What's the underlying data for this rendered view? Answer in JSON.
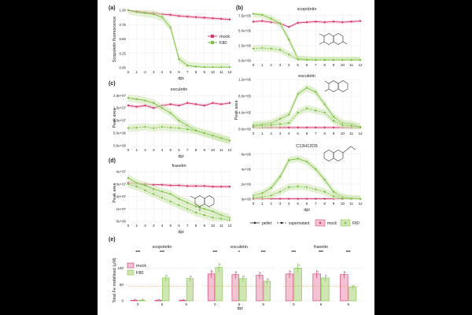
{
  "figure": {
    "colors": {
      "mock": "#d6336c",
      "f80": "#7cc242",
      "f80_band": "#cfe6b2",
      "mock_band": "#f4c2d2",
      "grid": "#ececec",
      "sig": "#222222"
    },
    "panel_letters": [
      "(a)",
      "(b)",
      "(c)",
      "(d)",
      "(e)"
    ],
    "ylabels": {
      "a": "Scopoletin fluorescence",
      "c": "Peak area",
      "d": "Peak area",
      "b": "Peak area",
      "e": "Total Fe mobilised (µM)"
    },
    "xlabels": {
      "dpi": "dpi"
    },
    "legend_a": {
      "mock": "mock",
      "f80": "F80"
    },
    "legend_b": {
      "pellet": "pellet",
      "supernatant": "supernatant",
      "mock": "mock",
      "f80": "F80"
    },
    "legend_e": {
      "mock": "mock",
      "f80": "F80"
    }
  },
  "chart_data": [
    {
      "id": "a",
      "type": "line",
      "x": [
        0,
        1,
        2,
        3,
        4,
        5,
        6,
        7,
        8,
        9,
        10,
        11,
        12
      ],
      "ylim": [
        0,
        1
      ],
      "yticks": [
        0,
        0.25,
        0.5,
        0.75,
        1
      ],
      "ytick_labels": [
        "0.00",
        "0.25",
        "0.50",
        "0.75",
        "1.00"
      ],
      "series": [
        {
          "name": "mock",
          "values": [
            1.0,
            0.98,
            0.96,
            0.95,
            0.93,
            0.92,
            0.9,
            0.89,
            0.88,
            0.87,
            0.86,
            0.85,
            0.84
          ]
        },
        {
          "name": "F80",
          "values": [
            1.0,
            0.97,
            0.95,
            0.93,
            0.88,
            0.7,
            0.15,
            0.04,
            0.02,
            0.01,
            0.01,
            0.01,
            0.01
          ]
        }
      ]
    },
    {
      "id": "c",
      "type": "line",
      "title": "esculetin",
      "x": [
        0,
        1,
        2,
        3,
        4,
        5,
        6,
        7,
        8,
        9,
        10,
        11,
        12
      ],
      "ylim": [
        0,
        21000000.0
      ],
      "yticks": [
        0,
        5000000.0,
        10000000.0,
        15000000.0,
        20000000.0
      ],
      "ytick_labels": [
        "0.0e+00",
        "5.0e+06",
        "1.0e+07",
        "1.5e+07",
        "2.0e+07"
      ],
      "series": [
        {
          "name": "mock pellet",
          "values": [
            16000000.0,
            15500000.0,
            16000000.0,
            15000000.0,
            16000000.0,
            16500000.0,
            16000000.0,
            17000000.0,
            16500000.0,
            16000000.0,
            17000000.0,
            16500000.0,
            17000000.0
          ]
        },
        {
          "name": "F80 pellet",
          "values": [
            19000000.0,
            18500000.0,
            18000000.0,
            17000000.0,
            15000000.0,
            13000000.0,
            10000000.0,
            8000000.0,
            6000000.0,
            5000000.0,
            4000000.0,
            3000000.0,
            2000000.0
          ]
        },
        {
          "name": "F80 supernatant",
          "values": [
            7000000.0,
            7200000.0,
            7500000.0,
            7000000.0,
            7500000.0,
            7200000.0,
            7000000.0,
            6500000.0,
            6000000.0,
            5000000.0,
            4000000.0,
            3000000.0,
            2000000.0
          ]
        }
      ]
    },
    {
      "id": "d",
      "type": "line",
      "title": "fraxetin",
      "x": [
        0,
        1,
        2,
        3,
        4,
        5,
        6,
        7,
        8,
        9,
        10,
        11,
        12
      ],
      "ylim": [
        0,
        42000000.0
      ],
      "yticks": [
        0,
        10000000.0,
        20000000.0,
        30000000.0,
        40000000.0
      ],
      "ytick_labels": [
        "0e+00",
        "1e+07",
        "2e+07",
        "3e+07",
        "4e+07"
      ],
      "series": [
        {
          "name": "mock pellet",
          "values": [
            31000000.0,
            30500000.0,
            30000000.0,
            29500000.0,
            29500000.0,
            29000000.0,
            29000000.0,
            28500000.0,
            28500000.0,
            28500000.0,
            28000000.0,
            28000000.0,
            28000000.0
          ]
        },
        {
          "name": "F80 pellet",
          "values": [
            35000000.0,
            31000000.0,
            29000000.0,
            26000000.0,
            24000000.0,
            22000000.0,
            18000000.0,
            15000000.0,
            12000000.0,
            10000000.0,
            8000000.0,
            5000000.0,
            3000000.0
          ]
        },
        {
          "name": "F80 supernatant",
          "values": [
            30000000.0,
            28000000.0,
            25000000.0,
            22000000.0,
            19000000.0,
            16000000.0,
            13000000.0,
            10000000.0,
            7000000.0,
            5000000.0,
            3000000.0,
            2000000.0,
            1000000.0
          ]
        }
      ]
    },
    {
      "id": "b1",
      "type": "line",
      "title": "scopoletin",
      "x": [
        0,
        1,
        2,
        3,
        4,
        5,
        6,
        7,
        8,
        9,
        10,
        11,
        12
      ],
      "ylim": [
        0,
        8000000.0
      ],
      "yticks": [
        0,
        2500000.0,
        5000000.0,
        7500000.0
      ],
      "ytick_labels": [
        "0.0e+00",
        "2.5e+06",
        "5.0e+06",
        "7.5e+06"
      ],
      "series": [
        {
          "name": "mock pellet",
          "values": [
            6500000.0,
            6600000.0,
            6400000.0,
            6200000.0,
            5600000.0,
            6300000.0,
            6400000.0,
            6500000.0,
            6400000.0,
            6500000.0,
            6400000.0,
            6500000.0,
            6600000.0
          ]
        },
        {
          "name": "F80 pellet",
          "values": [
            7800000.0,
            7600000.0,
            7000000.0,
            6200000.0,
            3500000.0,
            300000.0,
            200000.0,
            100000.0,
            100000.0,
            100000.0,
            100000.0,
            100000.0,
            100000.0
          ]
        },
        {
          "name": "F80 supernatant",
          "values": [
            2000000.0,
            2100000.0,
            2000000.0,
            1800000.0,
            1000000.0,
            200000.0,
            100000.0,
            100000.0,
            100000.0,
            100000.0,
            100000.0,
            100000.0,
            100000.0
          ]
        }
      ]
    },
    {
      "id": "b2",
      "type": "line",
      "title": "esculetin",
      "x": [
        0,
        1,
        2,
        3,
        4,
        5,
        6,
        7,
        8,
        9,
        10,
        11,
        12
      ],
      "ylim": [
        0,
        1200000.0
      ],
      "yticks": [
        0,
        400000.0,
        800000.0,
        1200000.0
      ],
      "ytick_labels": [
        "0.0e+00",
        "4.0e+05",
        "8.0e+05",
        "1.2e+06"
      ],
      "series": [
        {
          "name": "mock pellet",
          "values": [
            50000.0,
            40000.0,
            40000.0,
            40000.0,
            40000.0,
            40000.0,
            40000.0,
            40000.0,
            40000.0,
            40000.0,
            40000.0,
            40000.0,
            40000.0
          ]
        },
        {
          "name": "F80 pellet",
          "values": [
            100000.0,
            120000.0,
            150000.0,
            250000.0,
            350000.0,
            850000.0,
            1000000.0,
            900000.0,
            600000.0,
            300000.0,
            150000.0,
            120000.0,
            50000.0
          ]
        },
        {
          "name": "F80 supernatant",
          "values": [
            80000.0,
            90000.0,
            100000.0,
            120000.0,
            150000.0,
            400000.0,
            500000.0,
            450000.0,
            400000.0,
            200000.0,
            100000.0,
            80000.0,
            50000.0
          ]
        }
      ]
    },
    {
      "id": "b3",
      "type": "line",
      "title": "C13H12O5",
      "x": [
        0,
        1,
        2,
        3,
        4,
        5,
        6,
        7,
        8,
        9,
        10,
        11,
        12
      ],
      "ylim": [
        0,
        6600000.0
      ],
      "yticks": [
        0,
        2000000.0,
        4000000.0,
        6000000.0
      ],
      "ytick_labels": [
        "0e+00",
        "2e+06",
        "4e+06",
        "6e+06"
      ],
      "series": [
        {
          "name": "mock pellet",
          "values": [
            50000.0,
            50000.0,
            50000.0,
            50000.0,
            50000.0,
            50000.0,
            50000.0,
            50000.0,
            50000.0,
            50000.0,
            50000.0,
            50000.0,
            50000.0
          ]
        },
        {
          "name": "F80 pellet",
          "values": [
            500000.0,
            800000.0,
            1500000.0,
            3000000.0,
            5200000.0,
            5400000.0,
            5000000.0,
            4000000.0,
            2600000.0,
            1000000.0,
            300000.0,
            100000.0,
            50000.0
          ]
        },
        {
          "name": "F80 supernatant",
          "values": [
            200000.0,
            300000.0,
            500000.0,
            1000000.0,
            1600000.0,
            1700000.0,
            1600000.0,
            1300000.0,
            1000000.0,
            400000.0,
            100000.0,
            50000.0,
            30000.0
          ]
        }
      ]
    },
    {
      "id": "e",
      "type": "bar",
      "ylim": [
        0,
        125
      ],
      "yticks": [
        0,
        50,
        100
      ],
      "ytick_labels": [
        "0",
        "50",
        "100"
      ],
      "groups": [
        {
          "title": "scopoletin",
          "categories": [
            "0",
            "6",
            "9"
          ],
          "mock": [
            2,
            2,
            2
          ],
          "f80": [
            2,
            70,
            68
          ],
          "sig": [
            "***",
            "***",
            ""
          ]
        },
        {
          "title": "esculetin",
          "categories": [
            "0",
            "6",
            "9"
          ],
          "mock": [
            82,
            80,
            78
          ],
          "f80": [
            102,
            68,
            60
          ],
          "sig": [
            "***",
            "*",
            "***"
          ]
        },
        {
          "title": "fraxetin",
          "categories": [
            "0",
            "6",
            "9"
          ],
          "mock": [
            82,
            82,
            80
          ],
          "f80": [
            100,
            70,
            42
          ],
          "sig": [
            "***",
            "***",
            "***"
          ]
        }
      ]
    }
  ]
}
